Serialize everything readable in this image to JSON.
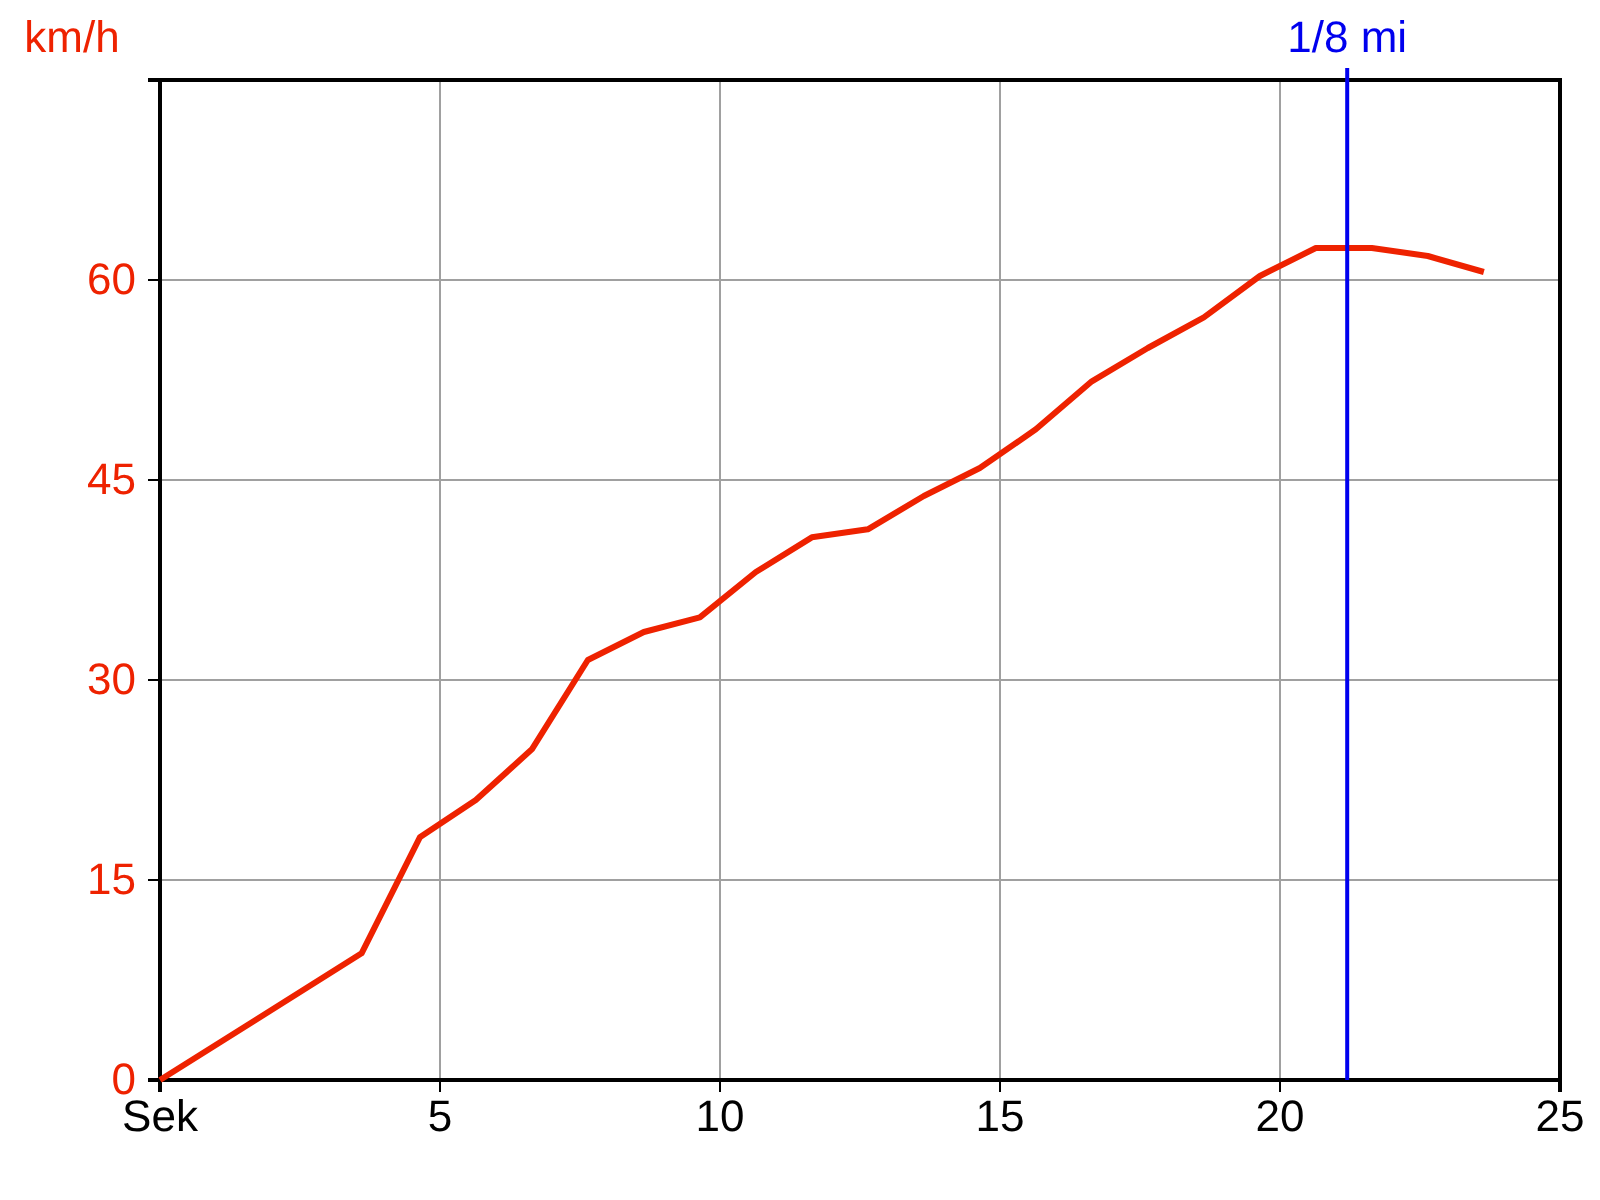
{
  "chart_data": {
    "type": "line",
    "ylabel": "km/h",
    "x": [
      0,
      3.6,
      4.64,
      5.64,
      6.64,
      7.64,
      8.64,
      9.64,
      10.64,
      11.64,
      12.64,
      13.64,
      14.64,
      15.64,
      16.64,
      17.64,
      18.64,
      19.64,
      20.64,
      21.64,
      22.64,
      23.64
    ],
    "series": [
      {
        "color": "#ee2200",
        "values": [
          0,
          9.5,
          18.2,
          21,
          24.8,
          31.5,
          33.6,
          34.7,
          38.1,
          40.7,
          41.3,
          43.8,
          45.9,
          48.8,
          52.4,
          54.9,
          57.2,
          60.3,
          62.4,
          62.4,
          61.8,
          60.6
        ]
      }
    ],
    "xlim": [
      0,
      25
    ],
    "xticks": [
      {
        "value": 0,
        "label": "Sek"
      },
      5,
      10,
      15,
      20,
      25
    ],
    "ylim": [
      0,
      75
    ],
    "yticks": [
      0,
      15,
      30,
      45,
      60
    ],
    "grid": true,
    "marker": "none",
    "line_style": "solid",
    "ref_lines": [
      {
        "axis": "x",
        "value": 21.2,
        "label": "1/8 mi",
        "color": "#0000ee"
      }
    ]
  }
}
